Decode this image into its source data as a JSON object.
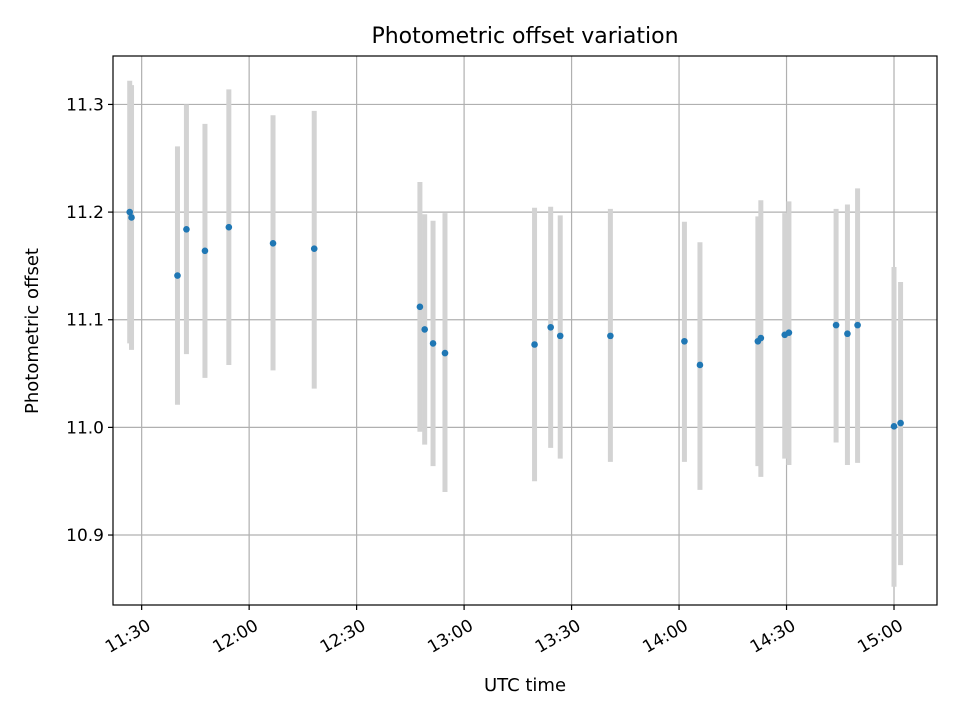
{
  "chart_data": {
    "type": "scatter",
    "title": "Photometric offset variation",
    "xlabel": "UTC time",
    "ylabel": "Photometric offset",
    "xlim": [
      "11:22",
      "15:12"
    ],
    "ylim": [
      10.835,
      11.345
    ],
    "grid": true,
    "x_ticks": [
      "11:30",
      "12:00",
      "12:30",
      "13:00",
      "13:30",
      "14:00",
      "14:30",
      "15:00"
    ],
    "y_ticks": [
      "10.9",
      "11.0",
      "11.1",
      "11.2",
      "11.3"
    ],
    "colors": {
      "points": "#1f77b4",
      "error_bars": "#d3d3d3",
      "grid": "#b0b0b0"
    },
    "points": [
      {
        "t": "11:26:40",
        "y": 11.2,
        "err_low": 11.078,
        "err_high": 11.322
      },
      {
        "t": "11:27:10",
        "y": 11.195,
        "err_low": 11.072,
        "err_high": 11.318
      },
      {
        "t": "11:40:00",
        "y": 11.141,
        "err_low": 11.021,
        "err_high": 11.261
      },
      {
        "t": "11:42:30",
        "y": 11.184,
        "err_low": 11.068,
        "err_high": 11.3
      },
      {
        "t": "11:47:40",
        "y": 11.164,
        "err_low": 11.046,
        "err_high": 11.282
      },
      {
        "t": "11:54:20",
        "y": 11.186,
        "err_low": 11.058,
        "err_high": 11.314
      },
      {
        "t": "12:06:40",
        "y": 11.171,
        "err_low": 11.053,
        "err_high": 11.29
      },
      {
        "t": "12:18:10",
        "y": 11.166,
        "err_low": 11.036,
        "err_high": 11.294
      },
      {
        "t": "12:47:40",
        "y": 11.112,
        "err_low": 10.996,
        "err_high": 11.228
      },
      {
        "t": "12:49:00",
        "y": 11.091,
        "err_low": 10.984,
        "err_high": 11.198
      },
      {
        "t": "12:51:20",
        "y": 11.078,
        "err_low": 10.964,
        "err_high": 11.192
      },
      {
        "t": "12:54:40",
        "y": 11.069,
        "err_low": 10.94,
        "err_high": 11.199
      },
      {
        "t": "13:19:40",
        "y": 11.077,
        "err_low": 10.95,
        "err_high": 11.204
      },
      {
        "t": "13:24:10",
        "y": 11.093,
        "err_low": 10.981,
        "err_high": 11.205
      },
      {
        "t": "13:26:50",
        "y": 11.085,
        "err_low": 10.971,
        "err_high": 11.197
      },
      {
        "t": "13:40:50",
        "y": 11.085,
        "err_low": 10.968,
        "err_high": 11.203
      },
      {
        "t": "14:01:30",
        "y": 11.08,
        "err_low": 10.968,
        "err_high": 11.191
      },
      {
        "t": "14:05:50",
        "y": 11.058,
        "err_low": 10.942,
        "err_high": 11.172
      },
      {
        "t": "14:22:00",
        "y": 11.08,
        "err_low": 10.964,
        "err_high": 11.196
      },
      {
        "t": "14:22:50",
        "y": 11.083,
        "err_low": 10.954,
        "err_high": 11.211
      },
      {
        "t": "14:29:30",
        "y": 11.086,
        "err_low": 10.971,
        "err_high": 11.199
      },
      {
        "t": "14:30:40",
        "y": 11.088,
        "err_low": 10.965,
        "err_high": 11.21
      },
      {
        "t": "14:43:50",
        "y": 11.095,
        "err_low": 10.986,
        "err_high": 11.203
      },
      {
        "t": "14:47:00",
        "y": 11.087,
        "err_low": 10.965,
        "err_high": 11.207
      },
      {
        "t": "14:49:50",
        "y": 11.095,
        "err_low": 10.967,
        "err_high": 11.222
      },
      {
        "t": "15:00:00",
        "y": 11.001,
        "err_low": 10.852,
        "err_high": 11.149
      },
      {
        "t": "15:01:50",
        "y": 11.004,
        "err_low": 10.872,
        "err_high": 11.135
      }
    ]
  }
}
